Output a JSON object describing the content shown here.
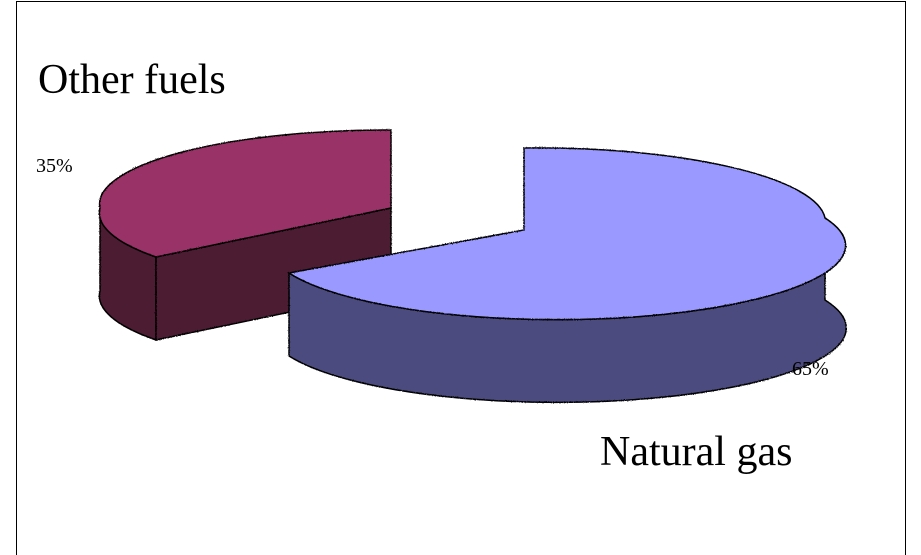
{
  "chart_data": {
    "type": "pie",
    "three_d": true,
    "exploded": true,
    "categories": [
      "Natural gas",
      "Other fuels"
    ],
    "values": [
      65,
      35
    ],
    "data_labels": [
      "65%",
      "35%"
    ],
    "colors": {
      "Natural gas": {
        "top": "#9999FF",
        "side": "#4C4C7F"
      },
      "Other fuels": {
        "top": "#993366",
        "side": "#4C1A33"
      }
    },
    "title": "",
    "legend": "none"
  }
}
